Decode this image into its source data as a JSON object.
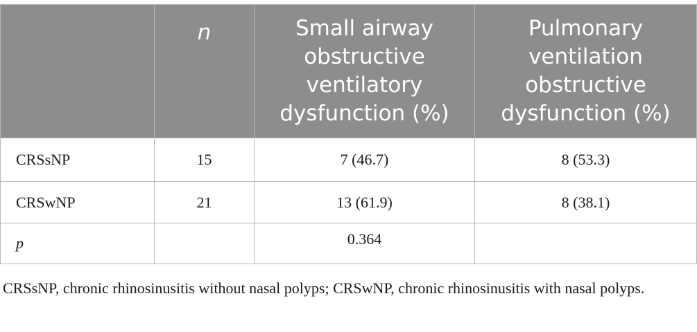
{
  "table": {
    "headers": [
      "",
      "n",
      "Small airway obstructive ventilatory dysfunction (%)",
      "Pulmonary ventilation obstructive dysfunction (%)"
    ],
    "rows": [
      [
        "CRSsNP",
        "15",
        "7 (46.7)",
        "8 (53.3)"
      ],
      [
        "CRSwNP",
        "21",
        "13 (61.9)",
        "8 (38.1)"
      ],
      [
        "p",
        "",
        "0.364",
        ""
      ]
    ]
  },
  "footnote": "CRSsNP, chronic rhinosinusitis without nasal polyps; CRSwNP, chronic rhinosinusitis with nasal polyps."
}
